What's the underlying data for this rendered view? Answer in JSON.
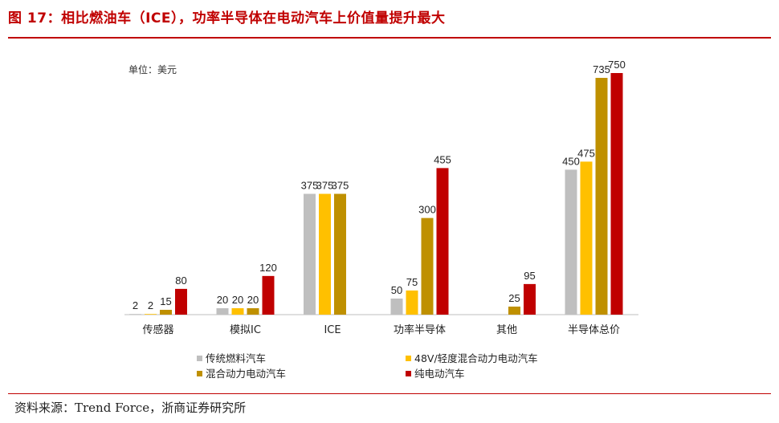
{
  "figure": {
    "title": "图 17：相比燃油车（ICE），功率半导体在电动汽车上价值量提升最大",
    "source": "资料来源：Trend Force，浙商证券研究所"
  },
  "colors": {
    "accent": "#c00000",
    "axis": "#bfbfbf"
  },
  "chart_data": {
    "type": "bar",
    "unit_label": "单位：美元",
    "categories": [
      "传感器",
      "模拟IC",
      "ICE",
      "功率半导体",
      "其他",
      "半导体总价"
    ],
    "series": [
      {
        "name": "传统燃料汽车",
        "color": "#bfbfbf",
        "values": [
          2,
          20,
          375,
          50,
          null,
          450
        ]
      },
      {
        "name": "48V/轻度混合动力电动汽车",
        "color": "#ffc000",
        "values": [
          2,
          20,
          375,
          75,
          null,
          475
        ]
      },
      {
        "name": "混合动力电动汽车",
        "color": "#bf9000",
        "values": [
          15,
          20,
          375,
          300,
          25,
          735
        ]
      },
      {
        "name": "纯电动汽车",
        "color": "#c00000",
        "values": [
          80,
          120,
          null,
          455,
          95,
          750
        ]
      }
    ],
    "ylim": [
      0,
      750
    ],
    "grid": false,
    "legend_position": "bottom"
  }
}
